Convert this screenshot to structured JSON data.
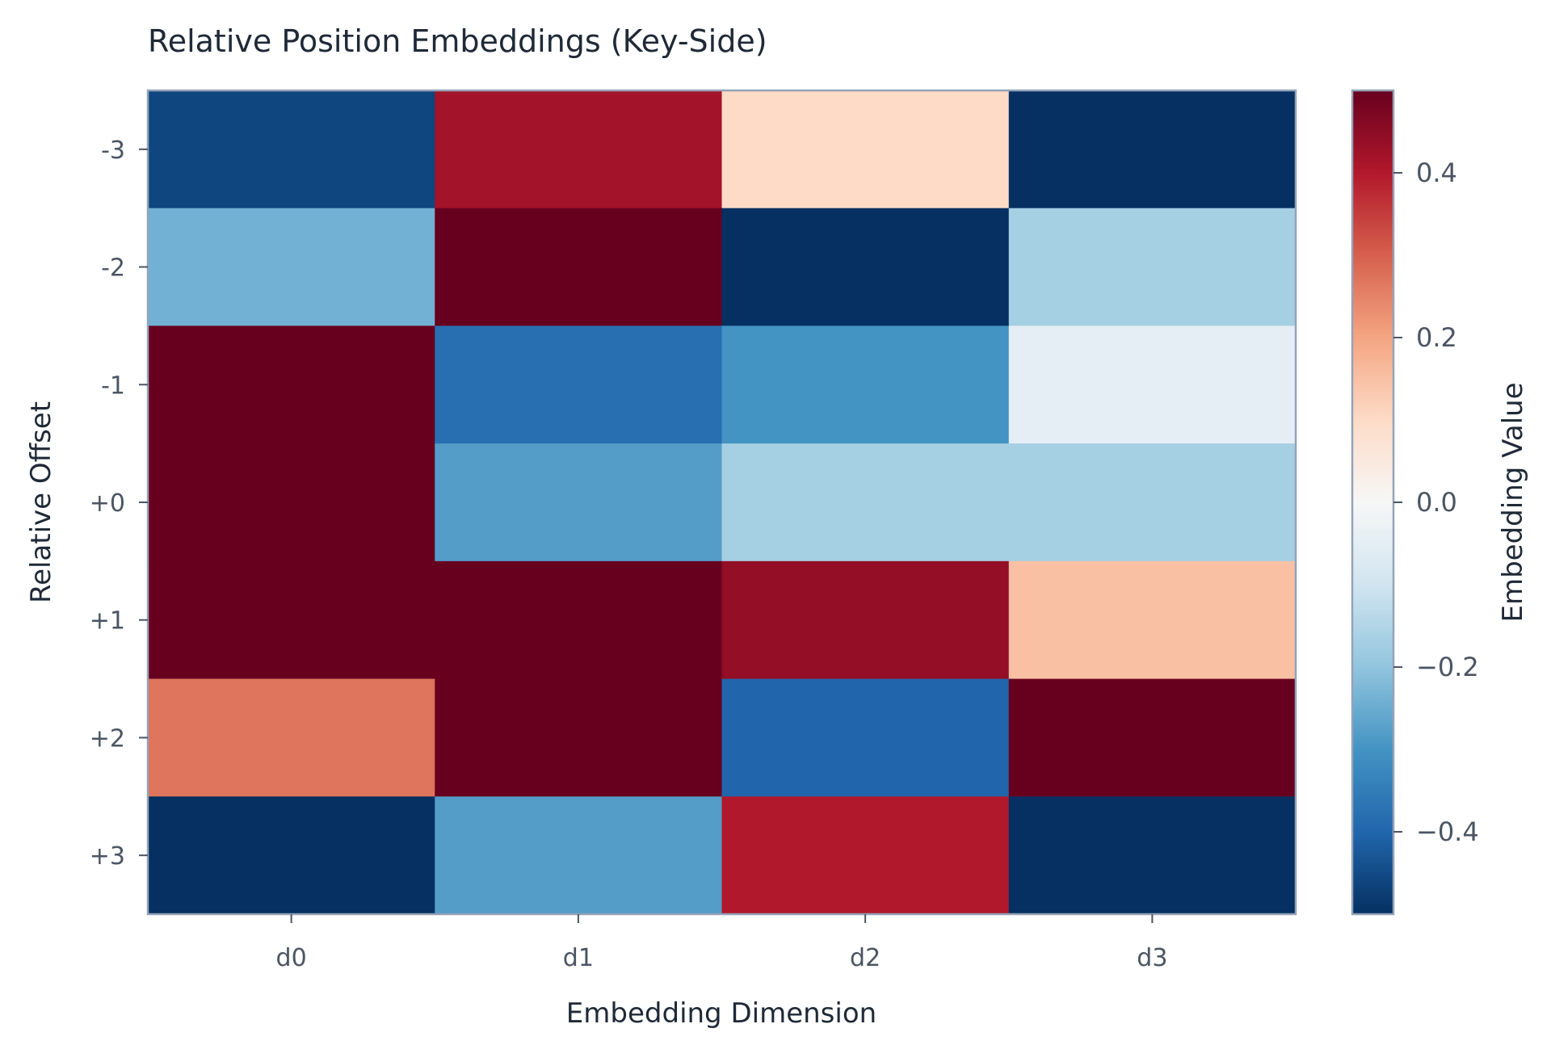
{
  "chart_data": {
    "type": "heatmap",
    "title": "Relative Position Embeddings (Key-Side)",
    "xlabel": "Embedding Dimension",
    "ylabel": "Relative Offset",
    "x_categories": [
      "d0",
      "d1",
      "d2",
      "d3"
    ],
    "y_categories": [
      "-3",
      "-2",
      "-1",
      "+0",
      "+1",
      "+2",
      "+3"
    ],
    "values": [
      [
        -0.46,
        0.42,
        0.1,
        -0.5
      ],
      [
        -0.24,
        0.5,
        -0.5,
        -0.17
      ],
      [
        0.5,
        -0.38,
        -0.3,
        -0.05
      ],
      [
        0.5,
        -0.28,
        -0.17,
        -0.17
      ],
      [
        0.5,
        0.5,
        0.44,
        0.15
      ],
      [
        0.27,
        0.5,
        -0.4,
        0.5
      ],
      [
        -0.5,
        -0.28,
        0.4,
        -0.5
      ]
    ],
    "colorbar": {
      "label": "Embedding Value",
      "range": [
        -0.5,
        0.5
      ],
      "ticks": [
        -0.4,
        -0.2,
        0.0,
        0.2,
        0.4
      ],
      "tick_labels": [
        "−0.4",
        "−0.2",
        "0.0",
        "0.2",
        "0.4"
      ],
      "colormap": "RdBu_r"
    },
    "grid": false
  }
}
